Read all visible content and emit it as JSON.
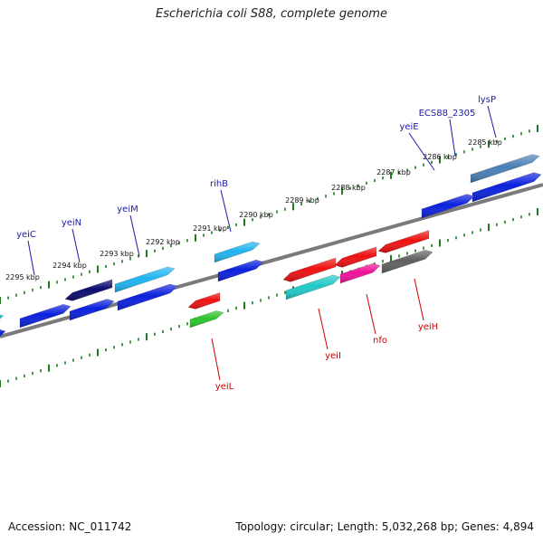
{
  "title": "Escherichia coli S88, complete genome",
  "footer": {
    "accession": "Accession: NC_011742",
    "topology": "Topology: circular; Length: 5,032,268 bp; Genes: 4,894"
  },
  "colors": {
    "backbone": "#7a7a7a",
    "ticks": "#1f7a1f",
    "label_forward": "#1a1aa6",
    "label_reverse": "#cc0000"
  },
  "scale_labels": [
    "2285 kbp",
    "2286 kbp",
    "2287 kbp",
    "2288 kbp",
    "2289 kbp",
    "2290 kbp",
    "2291 kbp",
    "2292 kbp",
    "2293 kbp",
    "2294 kbp",
    "2295 kbp"
  ],
  "forward_genes": [
    {
      "name": "lysP",
      "color": "#4a7fb5"
    },
    {
      "name": "ECS88_2305",
      "color": "#0b20dd"
    },
    {
      "name": "yeiE",
      "color": "#0b20dd"
    },
    {
      "name": "rihB",
      "color": "#1fb4f0"
    },
    {
      "name": "yeiM",
      "color": "#1fb4f0"
    },
    {
      "name": "yeiN",
      "color": "#0c0c70"
    },
    {
      "name": "yeiC",
      "color": "#0b20dd"
    }
  ],
  "reverse_genes": [
    {
      "name": "yeiH",
      "color": "#ee1111"
    },
    {
      "name": "nfo",
      "color": "#ee1199"
    },
    {
      "name": "yeiI",
      "color": "#20c8c8"
    },
    {
      "name": "yeiL",
      "color": "#ee1111"
    }
  ],
  "unlabeled_features": [
    {
      "color": "#606060"
    },
    {
      "color": "#ee1111"
    },
    {
      "color": "#ee1111"
    },
    {
      "color": "#ee1111"
    },
    {
      "color": "#2ec42e"
    },
    {
      "color": "#0b20dd"
    },
    {
      "color": "#0b20dd"
    },
    {
      "color": "#0b20dd"
    },
    {
      "color": "#0b20dd"
    },
    {
      "color": "#20c8c8"
    },
    {
      "color": "#0b20dd"
    }
  ]
}
